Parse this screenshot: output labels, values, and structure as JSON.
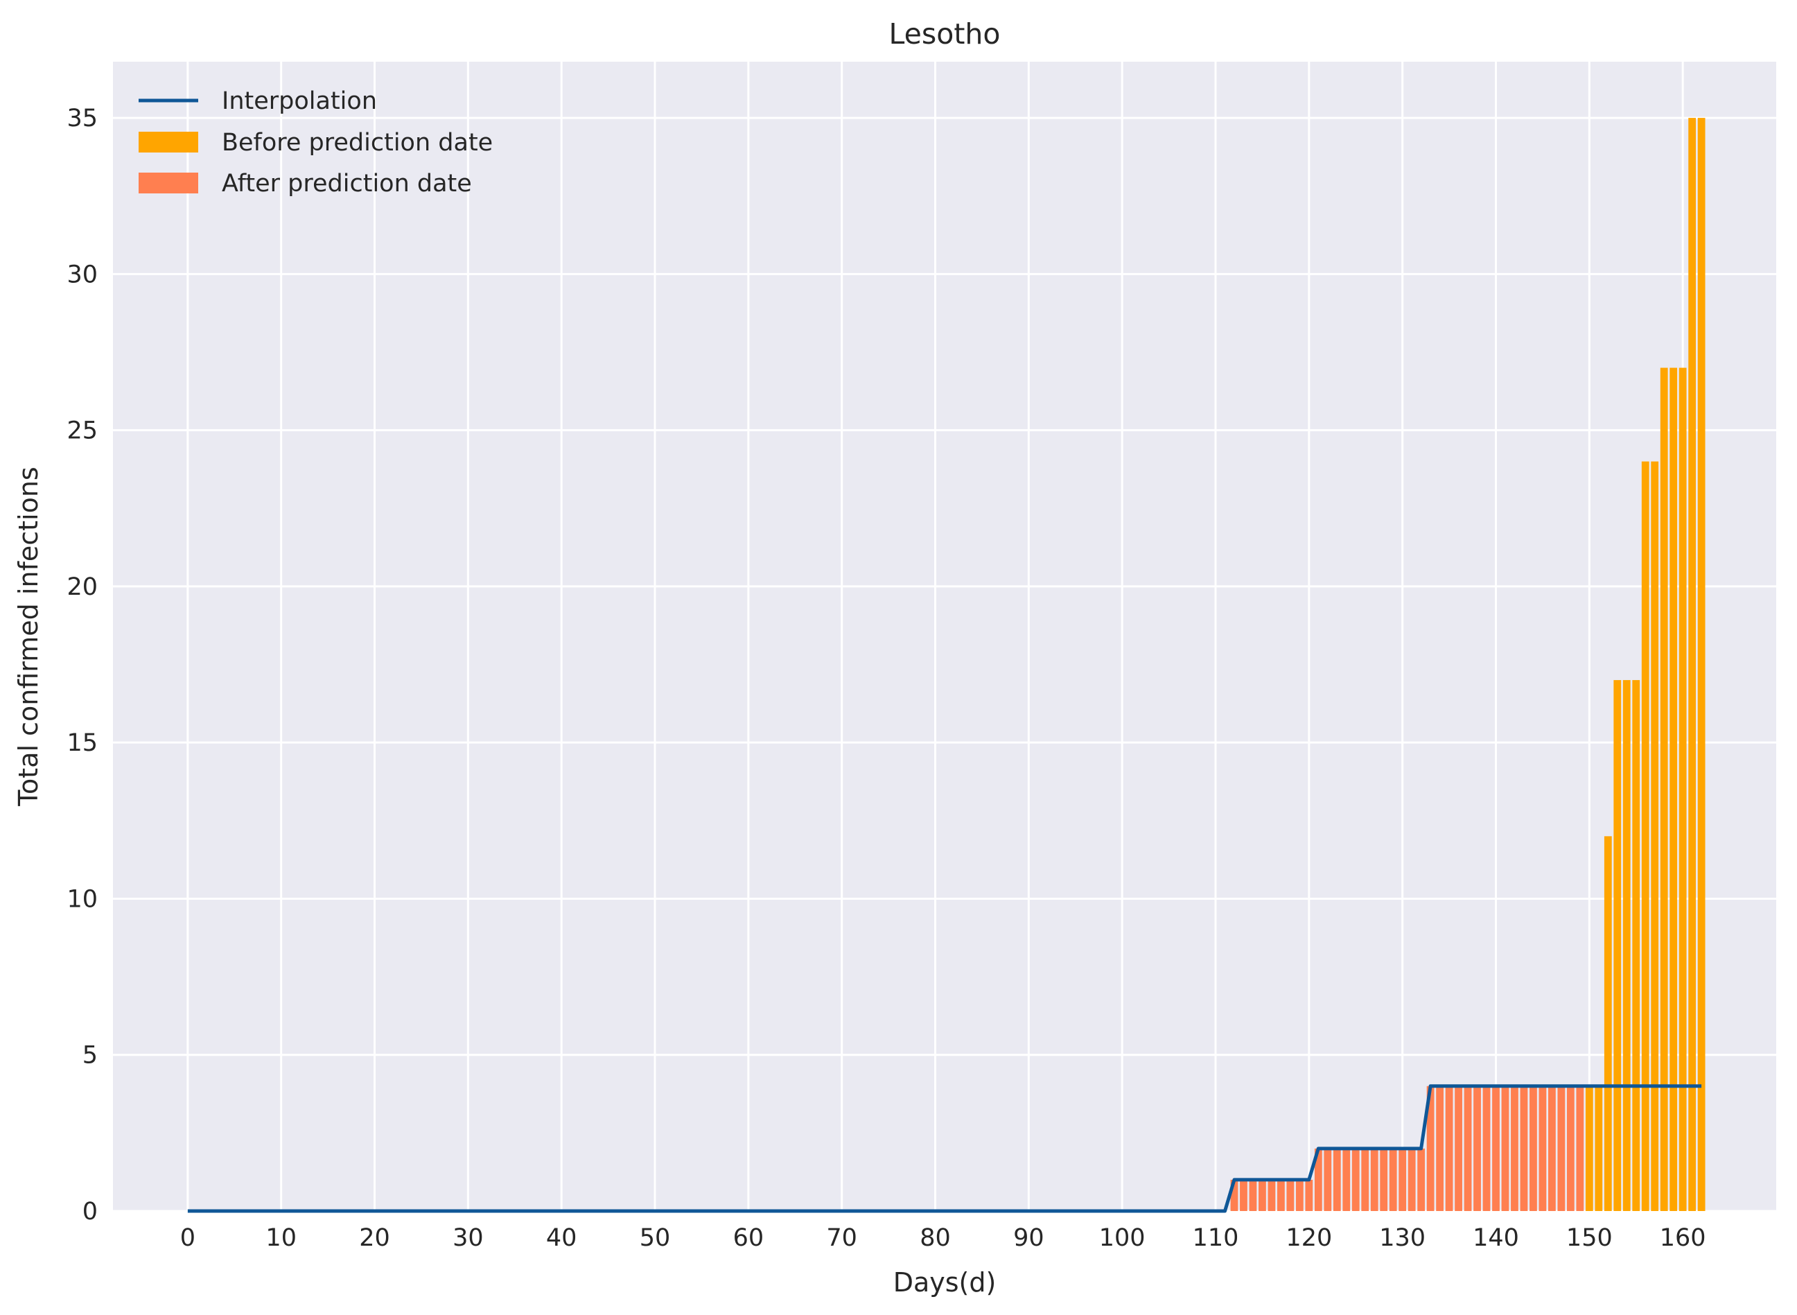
{
  "chart_data": {
    "type": "bar",
    "title": "Lesotho",
    "xlabel": "Days(d)",
    "ylabel": "Total confirmed infections",
    "xlim": [
      -8,
      170
    ],
    "ylim": [
      0,
      36.8
    ],
    "xticks": [
      0,
      10,
      20,
      30,
      40,
      50,
      60,
      70,
      80,
      90,
      100,
      110,
      120,
      130,
      140,
      150,
      160
    ],
    "yticks": [
      0,
      5,
      10,
      15,
      20,
      25,
      30,
      35
    ],
    "grid": true,
    "legend_position": "top-left",
    "legend": [
      {
        "label": "Interpolation",
        "kind": "line",
        "color": "#0f5797"
      },
      {
        "label": "Before prediction date",
        "kind": "patch",
        "color": "#ffa500"
      },
      {
        "label": "After prediction date",
        "kind": "patch",
        "color": "#ff7f50"
      }
    ],
    "colors": {
      "background": "#eaeaf2",
      "grid": "#ffffff",
      "interpolation": "#0f5797",
      "before": "#ffa500",
      "after": "#ff7f50"
    },
    "series": [
      {
        "name": "After prediction date",
        "kind": "bar",
        "points": [
          [
            112,
            1
          ],
          [
            113,
            1
          ],
          [
            114,
            1
          ],
          [
            115,
            1
          ],
          [
            116,
            1
          ],
          [
            117,
            1
          ],
          [
            118,
            1
          ],
          [
            119,
            1
          ],
          [
            120,
            1
          ],
          [
            121,
            2
          ],
          [
            122,
            2
          ],
          [
            123,
            2
          ],
          [
            124,
            2
          ],
          [
            125,
            2
          ],
          [
            126,
            2
          ],
          [
            127,
            2
          ],
          [
            128,
            2
          ],
          [
            129,
            2
          ],
          [
            130,
            2
          ],
          [
            131,
            2
          ],
          [
            132,
            2
          ],
          [
            133,
            4
          ],
          [
            134,
            4
          ],
          [
            135,
            4
          ],
          [
            136,
            4
          ],
          [
            137,
            4
          ],
          [
            138,
            4
          ],
          [
            139,
            4
          ],
          [
            140,
            4
          ],
          [
            141,
            4
          ],
          [
            142,
            4
          ],
          [
            143,
            4
          ],
          [
            144,
            4
          ],
          [
            145,
            4
          ],
          [
            146,
            4
          ],
          [
            147,
            4
          ],
          [
            148,
            4
          ],
          [
            149,
            4
          ]
        ]
      },
      {
        "name": "Before prediction date",
        "kind": "bar",
        "points": [
          [
            150,
            4
          ],
          [
            151,
            4
          ],
          [
            152,
            12
          ],
          [
            153,
            17
          ],
          [
            154,
            17
          ],
          [
            155,
            17
          ],
          [
            156,
            24
          ],
          [
            157,
            24
          ],
          [
            158,
            27
          ],
          [
            159,
            27
          ],
          [
            160,
            27
          ],
          [
            161,
            35
          ],
          [
            162,
            35
          ]
        ]
      },
      {
        "name": "Interpolation",
        "kind": "line",
        "points": [
          [
            0,
            0
          ],
          [
            111,
            0
          ],
          [
            112,
            1
          ],
          [
            120,
            1
          ],
          [
            121,
            2
          ],
          [
            132,
            2
          ],
          [
            133,
            4
          ],
          [
            162,
            4
          ]
        ]
      }
    ]
  }
}
